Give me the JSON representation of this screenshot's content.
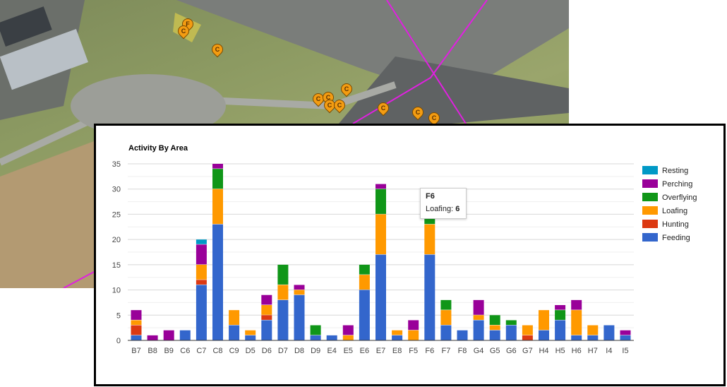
{
  "map": {
    "markers": [
      "F",
      "C",
      "C",
      "C",
      "C",
      "C",
      "C",
      "C",
      "C",
      "C",
      "C"
    ]
  },
  "colors": {
    "Resting": "#0099c6",
    "Perching": "#990099",
    "Overflying": "#109618",
    "Loafing": "#ff9900",
    "Hunting": "#dc3912",
    "Feeding": "#3366cc"
  },
  "chart_data": {
    "type": "bar",
    "stacked": true,
    "title": "Activity By Area",
    "xlabel": "",
    "ylabel": "",
    "ylim": [
      0,
      35
    ],
    "yticks": [
      0,
      5,
      10,
      15,
      20,
      25,
      30,
      35
    ],
    "grid": true,
    "legend_position": "right",
    "categories": [
      "B7",
      "B8",
      "B9",
      "C6",
      "C7",
      "C8",
      "C9",
      "D5",
      "D6",
      "D7",
      "D8",
      "D9",
      "E4",
      "E5",
      "E6",
      "E7",
      "E8",
      "F5",
      "F6",
      "F7",
      "F8",
      "G4",
      "G5",
      "G6",
      "G7",
      "H4",
      "H5",
      "H6",
      "H7",
      "I4",
      "I5"
    ],
    "series": [
      {
        "name": "Feeding",
        "values": [
          1,
          0,
          0,
          2,
          11,
          23,
          3,
          1,
          4,
          8,
          9,
          1,
          1,
          0,
          10,
          17,
          1,
          0,
          17,
          3,
          2,
          4,
          2,
          3,
          0,
          2,
          4,
          1,
          1,
          3,
          1
        ]
      },
      {
        "name": "Hunting",
        "values": [
          2,
          0,
          0,
          0,
          1,
          0,
          0,
          0,
          1,
          0,
          0,
          0,
          0,
          0,
          0,
          0,
          0,
          0,
          0,
          0,
          0,
          0,
          0,
          0,
          1,
          0,
          0,
          0,
          0,
          0,
          0
        ]
      },
      {
        "name": "Loafing",
        "values": [
          1,
          0,
          0,
          0,
          3,
          7,
          3,
          1,
          2,
          3,
          1,
          0,
          0,
          1,
          3,
          8,
          1,
          2,
          6,
          3,
          0,
          1,
          1,
          0,
          2,
          4,
          0,
          5,
          2,
          0,
          0
        ]
      },
      {
        "name": "Overflying",
        "values": [
          0,
          0,
          0,
          0,
          0,
          4,
          0,
          0,
          0,
          4,
          0,
          2,
          0,
          0,
          2,
          5,
          0,
          0,
          3,
          2,
          0,
          0,
          2,
          1,
          0,
          0,
          2,
          0,
          0,
          0,
          0
        ]
      },
      {
        "name": "Perching",
        "values": [
          2,
          1,
          2,
          0,
          4,
          1,
          0,
          0,
          2,
          0,
          1,
          0,
          0,
          2,
          0,
          1,
          0,
          2,
          0,
          0,
          0,
          3,
          0,
          0,
          0,
          0,
          1,
          2,
          0,
          0,
          1
        ]
      },
      {
        "name": "Resting",
        "values": [
          0,
          0,
          0,
          0,
          1,
          0,
          0,
          0,
          0,
          0,
          0,
          0,
          0,
          0,
          0,
          0,
          0,
          0,
          0,
          0,
          0,
          0,
          0,
          0,
          0,
          0,
          0,
          0,
          0,
          0,
          0
        ]
      }
    ],
    "legend": [
      "Resting",
      "Perching",
      "Overflying",
      "Loafing",
      "Hunting",
      "Feeding"
    ],
    "tooltip": {
      "title": "F6",
      "label": "Loafing:",
      "value": "6"
    }
  }
}
